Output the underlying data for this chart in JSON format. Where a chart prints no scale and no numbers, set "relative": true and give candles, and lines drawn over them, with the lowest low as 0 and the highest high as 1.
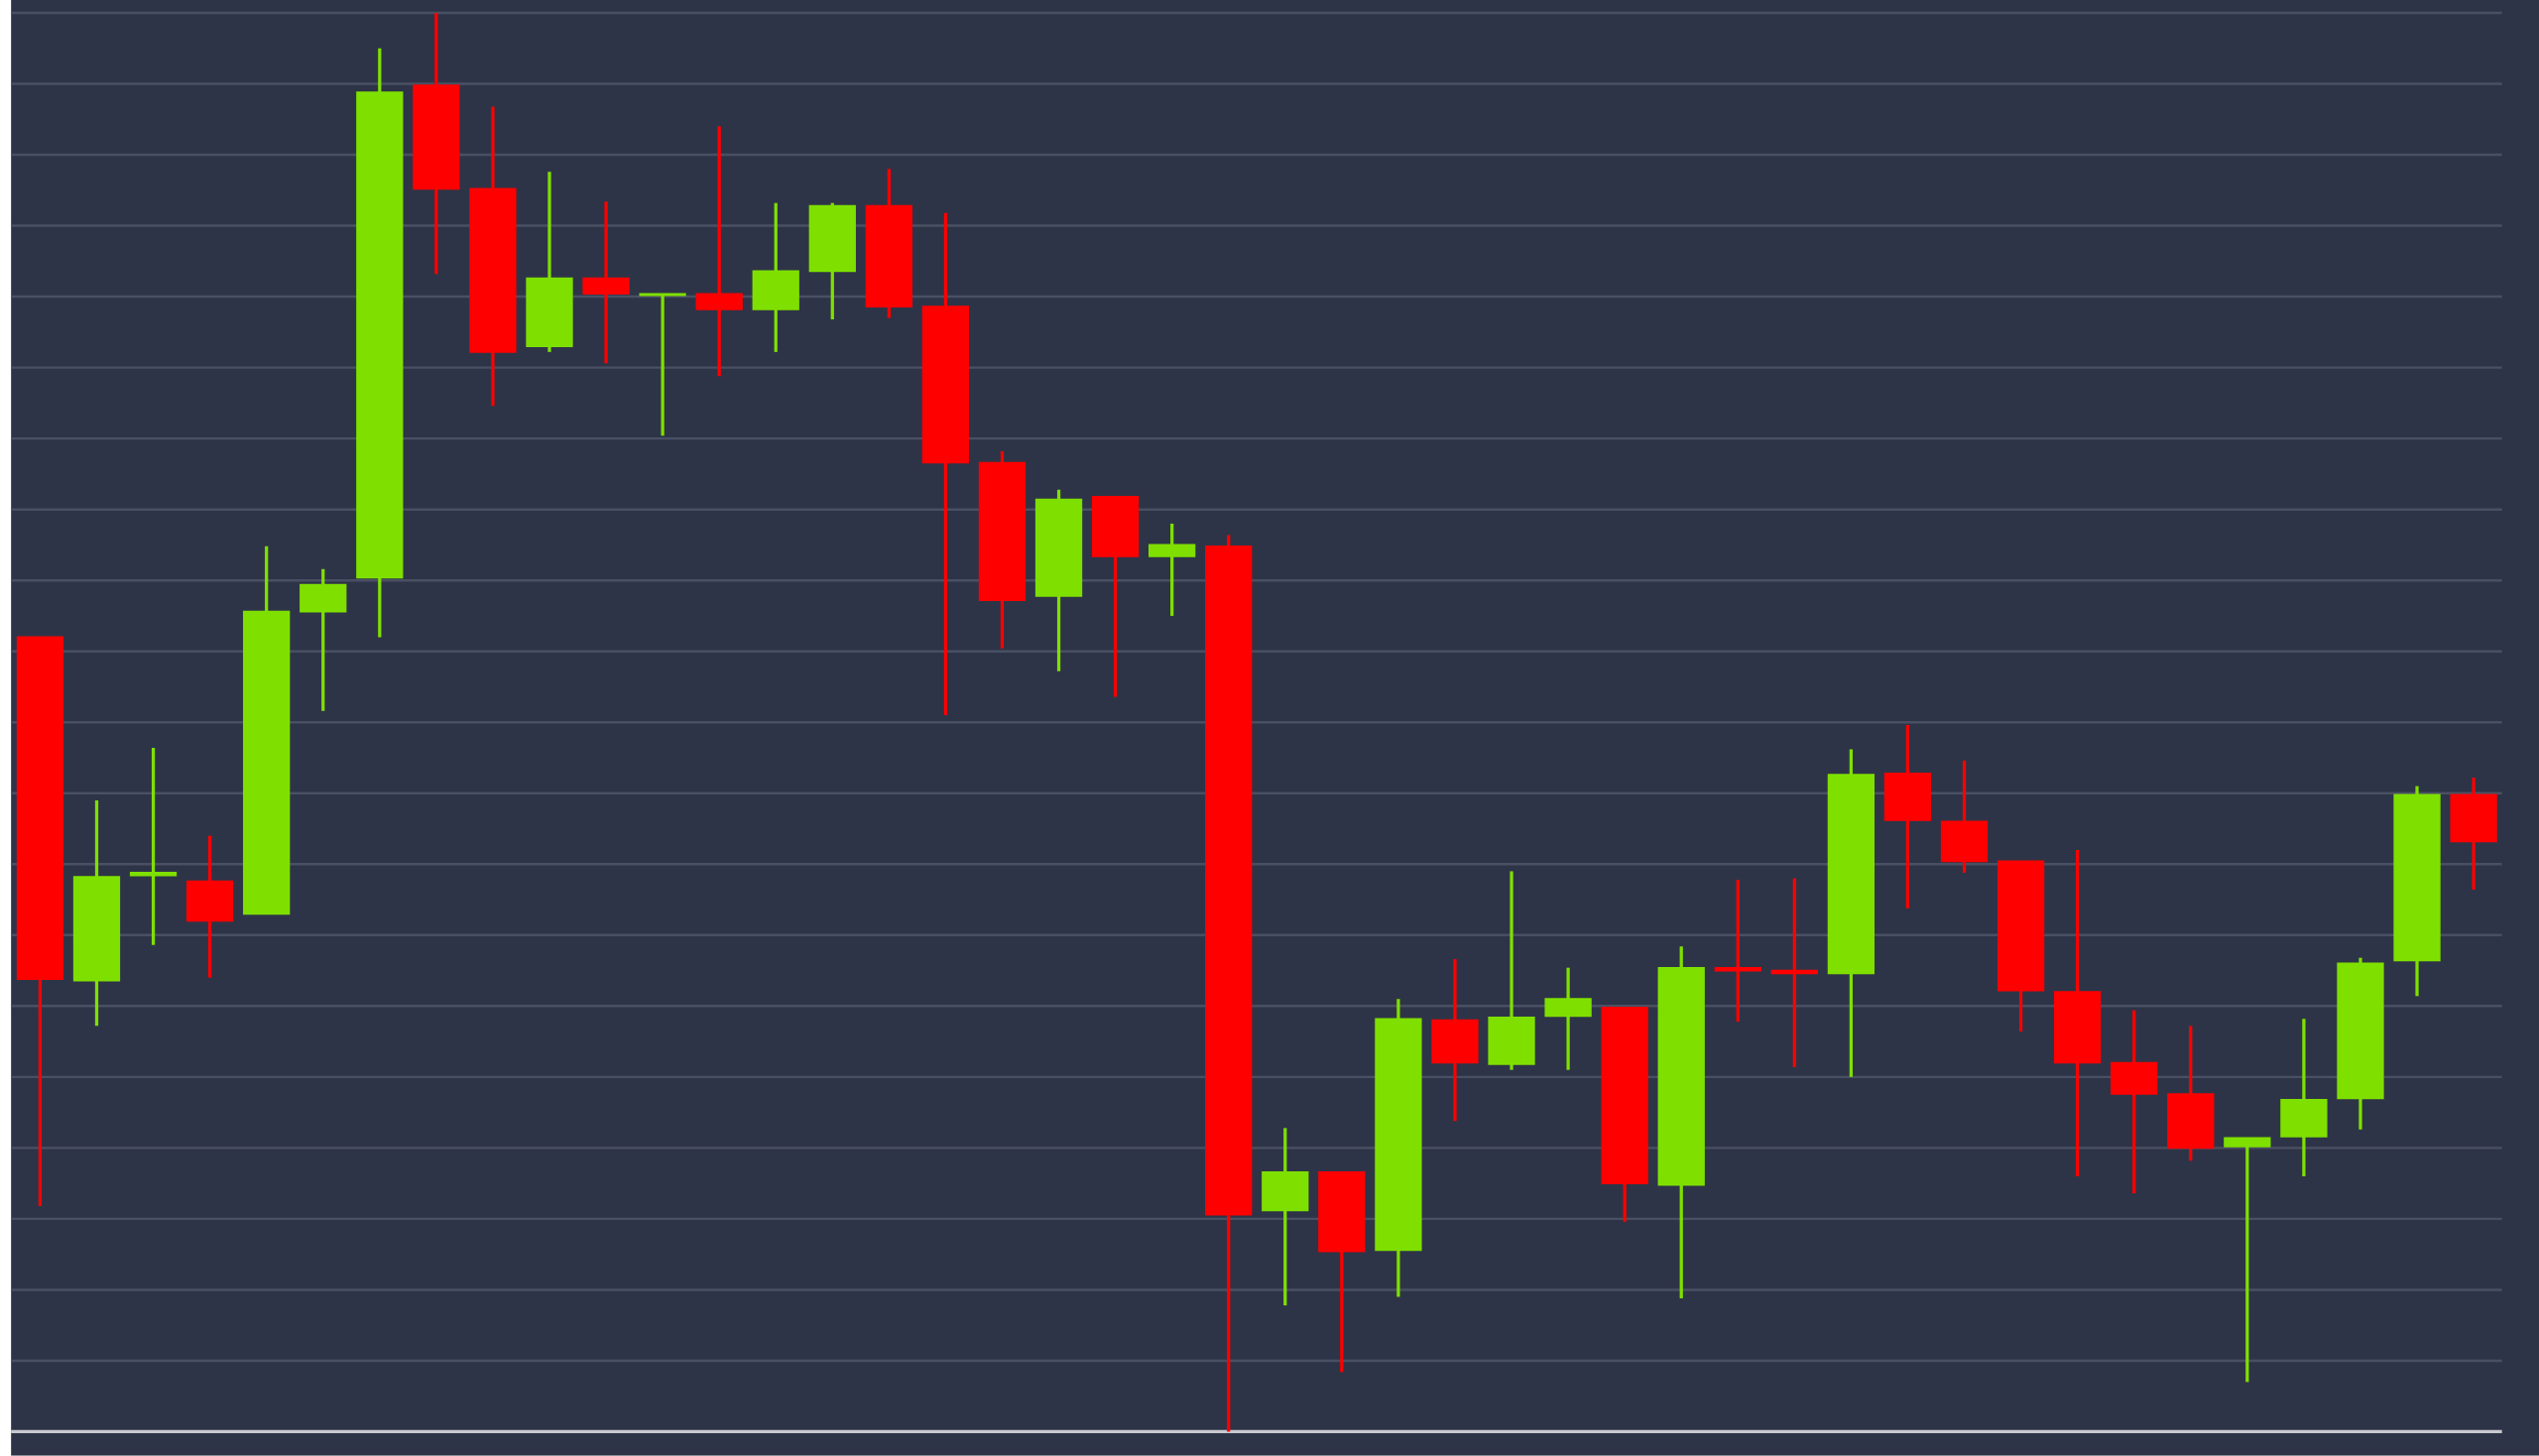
{
  "chart_data": {
    "type": "candlestick",
    "relative": true,
    "grid": "y",
    "categories": [
      null,
      null,
      null,
      null,
      null,
      null,
      null,
      null,
      null,
      null,
      null,
      null,
      null,
      null,
      null,
      null,
      null,
      null,
      null,
      null,
      null,
      null,
      null,
      null,
      null,
      null,
      null,
      null,
      null,
      null,
      null,
      null,
      null,
      null,
      null,
      null,
      null,
      null,
      null,
      null,
      null,
      null,
      null,
      null
    ],
    "ohlc": [
      [
        0.56,
        0.56,
        0.159,
        0.319
      ],
      [
        0.318,
        0.445,
        0.286,
        0.391
      ],
      [
        0.392,
        0.482,
        0.343,
        0.394
      ],
      [
        0.388,
        0.42,
        0.32,
        0.36
      ],
      [
        0.365,
        0.624,
        0.365,
        0.578
      ],
      [
        0.578,
        0.608,
        0.508,
        0.597
      ],
      [
        0.602,
        0.975,
        0.56,
        0.944
      ],
      [
        0.949,
        1.0,
        0.816,
        0.876
      ],
      [
        0.876,
        0.934,
        0.723,
        0.761
      ],
      [
        0.765,
        0.888,
        0.761,
        0.813
      ],
      [
        0.813,
        0.867,
        0.753,
        0.802
      ],
      [
        0.801,
        0.802,
        0.702,
        0.802
      ],
      [
        0.802,
        0.92,
        0.744,
        0.791
      ],
      [
        0.791,
        0.866,
        0.761,
        0.818
      ],
      [
        0.818,
        0.866,
        0.784,
        0.864
      ],
      [
        0.864,
        0.89,
        0.785,
        0.793
      ],
      [
        0.793,
        0.859,
        0.505,
        0.683
      ],
      [
        0.683,
        0.691,
        0.552,
        0.586
      ],
      [
        0.589,
        0.664,
        0.536,
        0.657
      ],
      [
        0.659,
        0.659,
        0.518,
        0.617
      ],
      [
        0.617,
        0.64,
        0.575,
        0.625
      ],
      [
        0.624,
        0.632,
        0.0,
        0.153
      ],
      [
        0.156,
        0.214,
        0.089,
        0.183
      ],
      [
        0.183,
        0.183,
        0.042,
        0.127
      ],
      [
        0.128,
        0.305,
        0.095,
        0.291
      ],
      [
        0.29,
        0.333,
        0.219,
        0.26
      ],
      [
        0.259,
        0.395,
        0.255,
        0.292
      ],
      [
        0.293,
        0.327,
        0.255,
        0.305
      ],
      [
        0.299,
        0.299,
        0.148,
        0.175
      ],
      [
        0.174,
        0.342,
        0.094,
        0.327
      ],
      [
        0.327,
        0.389,
        0.289,
        0.325
      ],
      [
        0.325,
        0.39,
        0.257,
        0.323
      ],
      [
        0.323,
        0.481,
        0.25,
        0.463
      ],
      [
        0.464,
        0.498,
        0.369,
        0.431
      ],
      [
        0.43,
        0.473,
        0.394,
        0.402
      ],
      [
        0.402,
        0.402,
        0.282,
        0.311
      ],
      [
        0.31,
        0.41,
        0.18,
        0.26
      ],
      [
        0.26,
        0.297,
        0.168,
        0.238
      ],
      [
        0.238,
        0.286,
        0.191,
        0.2
      ],
      [
        0.201,
        0.207,
        0.035,
        0.207
      ],
      [
        0.208,
        0.291,
        0.18,
        0.234
      ],
      [
        0.235,
        0.334,
        0.213,
        0.33
      ],
      [
        0.332,
        0.455,
        0.307,
        0.449
      ],
      [
        0.449,
        0.461,
        0.382,
        0.416
      ]
    ],
    "colors": [
      "#ff0000",
      "#7fe000",
      "#7fe000",
      "#ff0000",
      "#7fe000",
      "#7fe000",
      "#7fe000",
      "#ff0000",
      "#ff0000",
      "#7fe000",
      "#ff0000",
      "#7fe000",
      "#ff0000",
      "#7fe000",
      "#7fe000",
      "#ff0000",
      "#ff0000",
      "#ff0000",
      "#7fe000",
      "#ff0000",
      "#7fe000",
      "#ff0000",
      "#7fe000",
      "#ff0000",
      "#7fe000",
      "#ff0000",
      "#7fe000",
      "#7fe000",
      "#ff0000",
      "#7fe000",
      "#ff0000",
      "#ff0000",
      "#7fe000",
      "#ff0000",
      "#ff0000",
      "#ff0000",
      "#ff0000",
      "#ff0000",
      "#ff0000",
      "#7fe000",
      "#7fe000",
      "#7fe000",
      "#7fe000",
      "#ff0000"
    ]
  }
}
